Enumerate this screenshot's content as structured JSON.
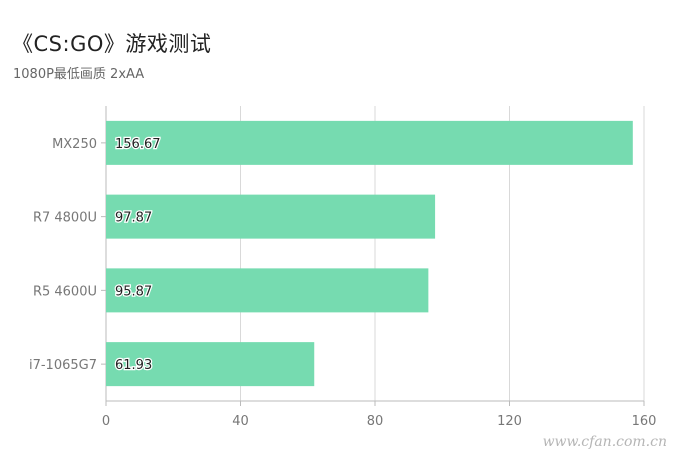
{
  "header": {
    "title": "《CS:GO》游戏测试",
    "subtitle": "1080P最低画质 2xAA"
  },
  "watermark": "www.cfan.com.cn",
  "colors": {
    "bar": "#76dbb0",
    "grid": "#d9d9d9",
    "axis": "#bbbbbb",
    "tick_text": "#777777",
    "label_text": "#222222"
  },
  "chart_data": {
    "type": "bar",
    "orientation": "horizontal",
    "title": "《CS:GO》游戏测试",
    "subtitle": "1080P最低画质 2xAA",
    "categories": [
      "MX250",
      "R7 4800U",
      "R5 4600U",
      "i7-1065G7"
    ],
    "values": [
      156.67,
      97.87,
      95.87,
      61.93
    ],
    "value_labels": [
      "156.67",
      "97.87",
      "95.87",
      "61.93"
    ],
    "xlim": [
      0,
      160
    ],
    "xticks": [
      0,
      40,
      80,
      120,
      160
    ],
    "grid": true,
    "legend": "none"
  }
}
